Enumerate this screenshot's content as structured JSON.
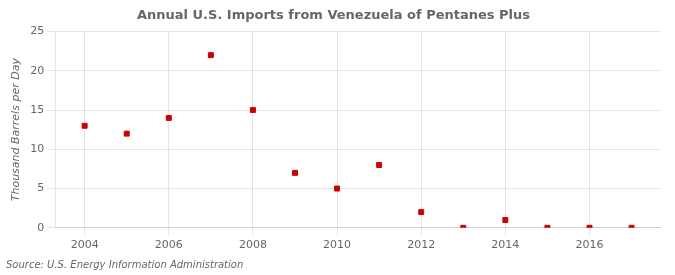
{
  "chart_data": {
    "type": "scatter",
    "title": "Annual U.S. Imports from Venezuela of Pentanes Plus",
    "ylabel": "Thousand Barrels per Day",
    "annotations": [
      "Source: U.S. Energy Information Administration"
    ],
    "x": [
      2004,
      2005,
      2006,
      2007,
      2008,
      2009,
      2010,
      2011,
      2012,
      2013,
      2014,
      2015,
      2016,
      2017
    ],
    "values": [
      13,
      12,
      14,
      22,
      15,
      7,
      5,
      8,
      2,
      0,
      1,
      0,
      0,
      0
    ],
    "color": "#cc0000",
    "marker": "square",
    "xlim": [
      2003.3,
      2017.7
    ],
    "xticks": [
      2004,
      2006,
      2008,
      2010,
      2012,
      2014,
      2016
    ],
    "ylim": [
      0,
      25
    ],
    "yticks": [
      0,
      5,
      10,
      15,
      20,
      25
    ],
    "grid": true
  }
}
